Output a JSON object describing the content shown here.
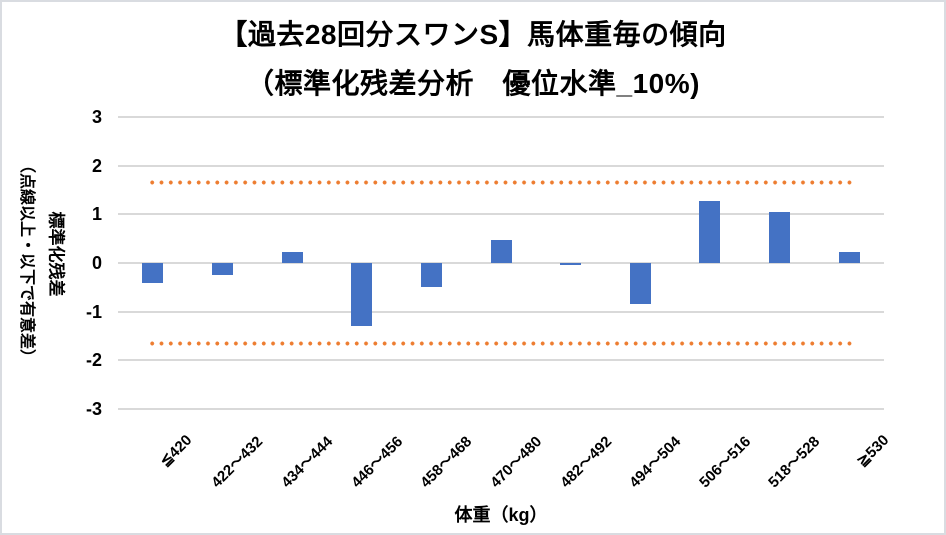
{
  "title": {
    "line1": "【過去28回分スワンS】馬体重毎の傾向",
    "line2": "（標準化残差分析　優位水準_10%)"
  },
  "y_axis": {
    "title_main": "標準化残差",
    "title_sub": "（点線以上・以下で有意差）"
  },
  "x_axis": {
    "title": "体重（kg）"
  },
  "chart_data": {
    "type": "bar",
    "title": "【過去28回分スワンS】馬体重毎の傾向（標準化残差分析　優位水準_10%)",
    "categories": [
      "≦420",
      "422～432",
      "434～444",
      "446～456",
      "458～468",
      "470～480",
      "482～492",
      "494～504",
      "506～516",
      "518～528",
      "≧530"
    ],
    "values": [
      -0.41,
      -0.25,
      0.23,
      -1.3,
      -0.49,
      0.47,
      -0.05,
      -0.85,
      1.27,
      1.05,
      0.22
    ],
    "series_name": "標準化残差",
    "significance_lines": {
      "values": [
        1.645,
        -1.645
      ],
      "style": "dotted",
      "color": "#ED7D31"
    },
    "xlabel": "体重（kg）",
    "ylabel": "標準化残差（点線以上・以下で有意差）",
    "ylim": [
      -3,
      3
    ],
    "yticks": [
      3,
      2,
      1,
      0,
      -1,
      -2,
      -3
    ],
    "grid": true,
    "legend": false,
    "colors": {
      "bar": "#4472C4",
      "significance": "#ED7D31",
      "gridline": "#D9D9D9",
      "text": "#000000",
      "frame_border": "#d9dce1"
    }
  }
}
